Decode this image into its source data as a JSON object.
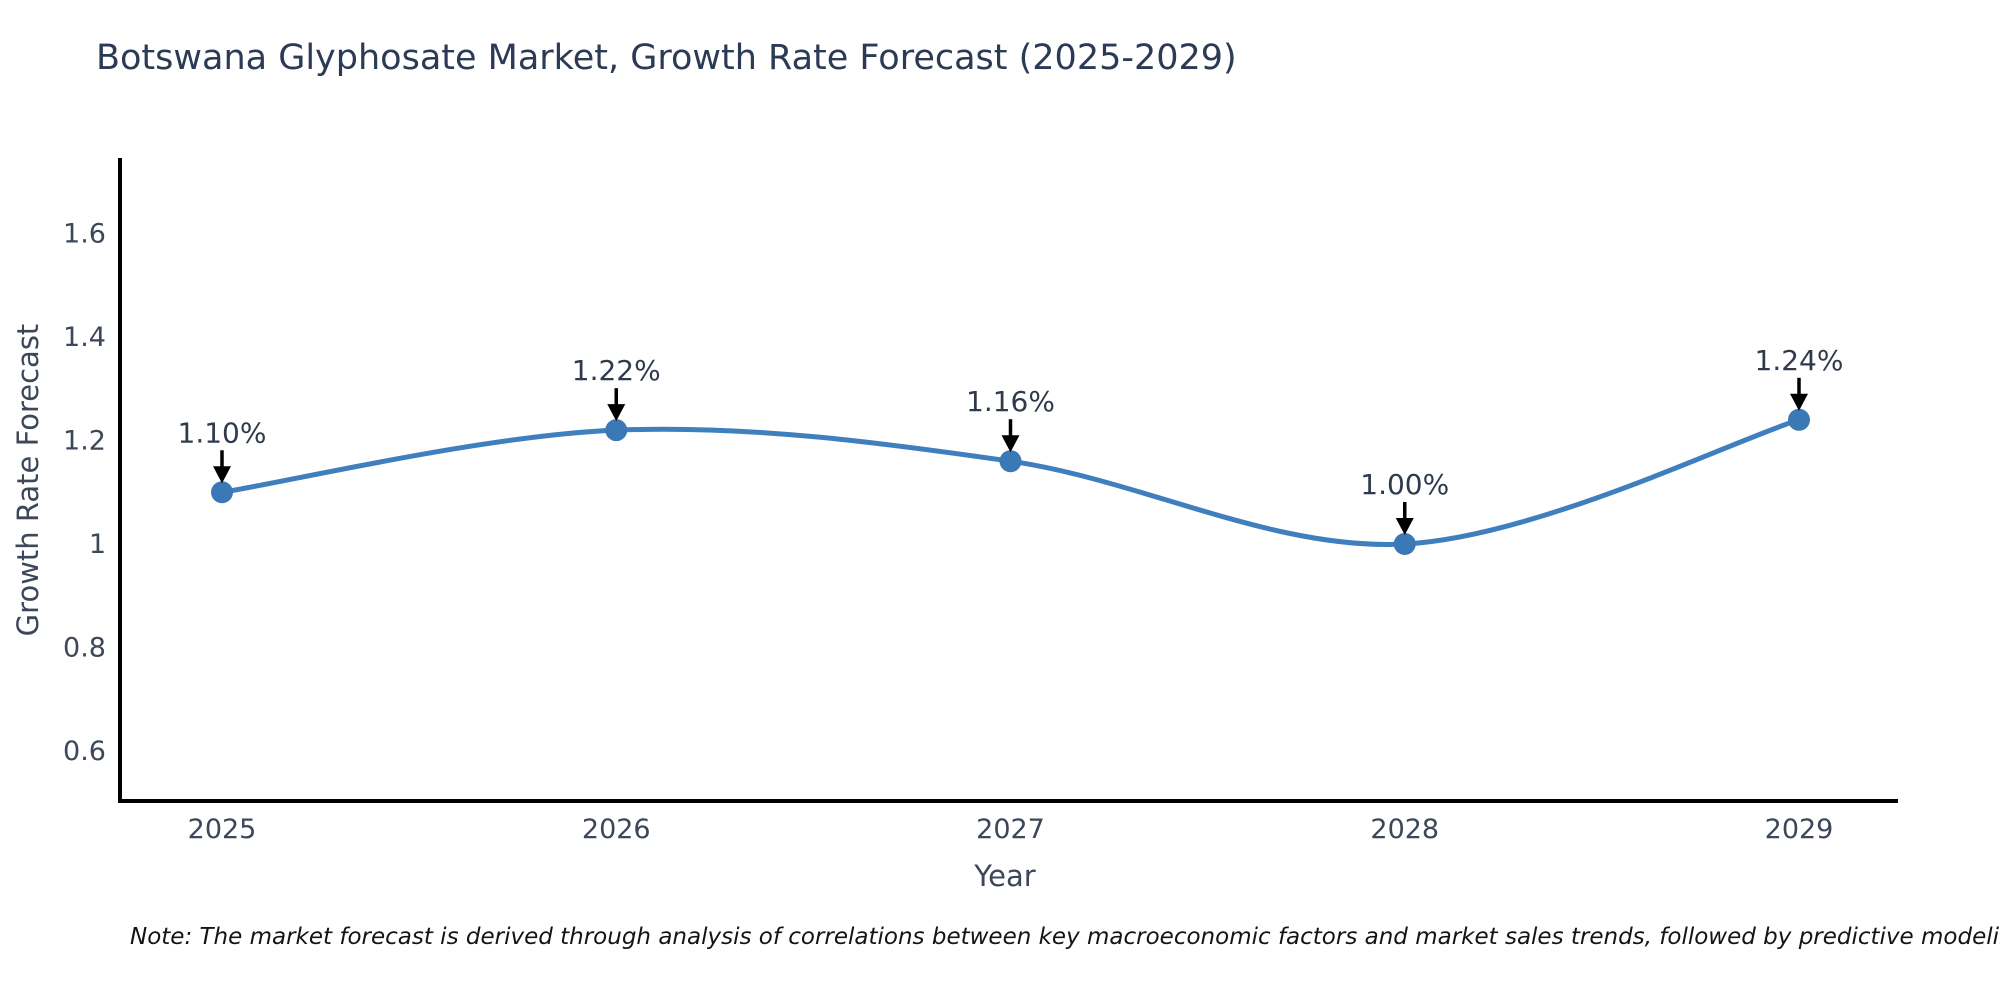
{
  "title": "Botswana Glyphosate Market, Growth Rate Forecast (2025-2029)",
  "note": "Note: The market forecast is derived through analysis of correlations between key macroeconomic factors and market sales trends, followed by predictive modeling to project future sales",
  "chart_data": {
    "type": "line",
    "title": "Botswana Glyphosate Market, Growth Rate Forecast (2025-2029)",
    "xlabel": "Year",
    "ylabel": "Growth Rate Forecast",
    "x": [
      "2025",
      "2026",
      "2027",
      "2028",
      "2029"
    ],
    "series": [
      {
        "name": "Growth Rate Forecast",
        "values": [
          1.1,
          1.22,
          1.16,
          1.0,
          1.24
        ]
      }
    ],
    "point_labels": [
      "1.10%",
      "1.22%",
      "1.16%",
      "1.00%",
      "1.24%"
    ],
    "yticks": [
      "0.6",
      "0.8",
      "1",
      "1.2",
      "1.4",
      "1.6"
    ],
    "ylim": [
      0.505,
      1.74
    ],
    "grid": false,
    "legend": "none",
    "smooth": true,
    "annotation_style": "down-arrow",
    "colors": {
      "line": "#3f7fbe",
      "marker": "#3a78b6",
      "axis": "#000000",
      "tick_text": "#3c4759",
      "title_text": "#2b3a55",
      "annotation_text": "#2f3b4c",
      "annotation_arrow": "#000000",
      "note_text": "#141414"
    }
  }
}
